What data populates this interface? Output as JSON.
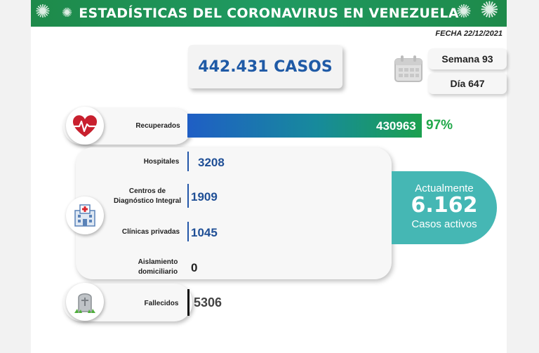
{
  "header": {
    "title": "ESTADÍSTICAS DEL CORONAVIRUS EN VENEZUELA",
    "date": "FECHA 22/12/2021",
    "brand_color": "#1e8a4a"
  },
  "summary": {
    "total_cases": "442.431 CASOS",
    "week": "Semana 93",
    "day": "Día 647",
    "calendar_icon": "calendar-icon"
  },
  "recovered": {
    "label": "Recuperados",
    "value": "430963",
    "percent": "97%",
    "icon": "heart-pulse-icon"
  },
  "hospitalization": {
    "icon": "hospital-icon",
    "rows": [
      {
        "label": "Hospitales",
        "value": "3208"
      },
      {
        "label": "Centros de Diagnóstico Integral",
        "label_line1": "Centros de",
        "label_line2": "Diagnóstico Integral",
        "value": "1909"
      },
      {
        "label": "Clínicas privadas",
        "value": "1045"
      },
      {
        "label": "Aislamiento domiciliario",
        "label_line1": "Aislamiento",
        "label_line2": "domiciliario",
        "value": "0"
      }
    ]
  },
  "active": {
    "line1": "Actualmente",
    "value": "6.162",
    "line3": "Casos activos",
    "color": "#45b7b4"
  },
  "deceased": {
    "label": "Fallecidos",
    "value": "5306",
    "icon": "tombstone-icon"
  }
}
